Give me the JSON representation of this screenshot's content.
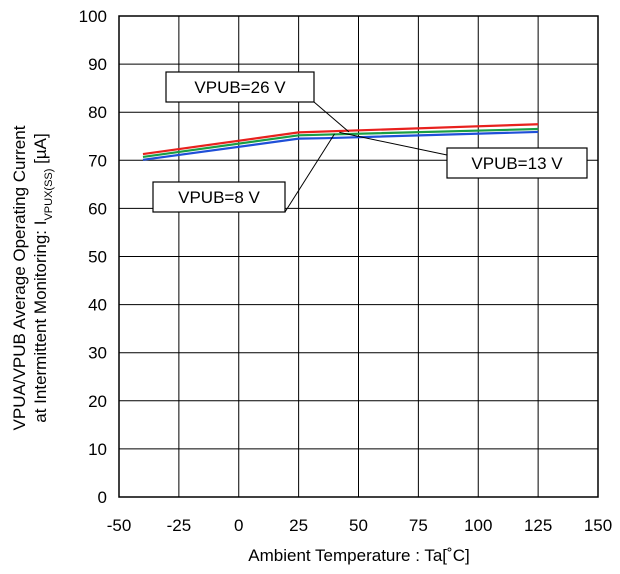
{
  "chart_data": {
    "type": "line",
    "xlabel": "Ambient Temperature : Ta[˚C]",
    "ylabel_line1": "VPUA/VPUB Average Operating Current",
    "ylabel_line2_main": "at Intermittent Monitoring: I",
    "ylabel_line2_sub": "VPUX(SS)",
    "ylabel_line2_unit": " [µA]",
    "xlim": [
      -50,
      150
    ],
    "ylim": [
      0,
      100
    ],
    "x_ticks": [
      "-50",
      "-25",
      "0",
      "25",
      "50",
      "75",
      "100",
      "125",
      "150"
    ],
    "y_ticks": [
      "0",
      "10",
      "20",
      "30",
      "40",
      "50",
      "60",
      "70",
      "80",
      "90",
      "100"
    ],
    "grid": true,
    "series": [
      {
        "name": "VPUB=26 V",
        "color": "#e8211e",
        "x": [
          -40,
          25,
          125
        ],
        "values": [
          71.3,
          75.8,
          77.5
        ]
      },
      {
        "name": "VPUB=13 V",
        "color": "#1a9e45",
        "x": [
          -40,
          25,
          125
        ],
        "values": [
          70.7,
          75.2,
          76.5
        ]
      },
      {
        "name": "VPUB=8 V",
        "color": "#1f4fd8",
        "x": [
          -40,
          25,
          36,
          125
        ],
        "values": [
          70.1,
          74.5,
          74.6,
          75.9
        ]
      }
    ],
    "annotations": [
      {
        "text": "VPUB=26 V",
        "target": [
          46,
          75.9
        ]
      },
      {
        "text": "VPUB=13 V",
        "target": [
          42,
          75.8
        ]
      },
      {
        "text": "VPUB=8 V",
        "target": [
          40,
          75.5
        ]
      }
    ]
  }
}
